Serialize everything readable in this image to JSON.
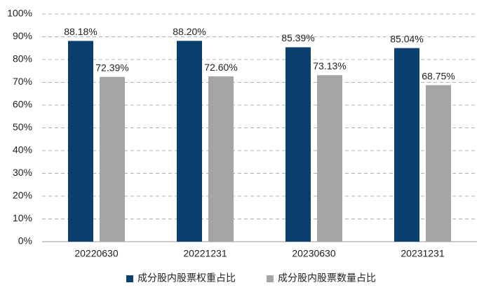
{
  "chart_data": {
    "type": "bar",
    "categories": [
      "20220630",
      "20221231",
      "20230630",
      "20231231"
    ],
    "series": [
      {
        "name": "成分股内股票权重占比",
        "color": "#0b3f70",
        "values": [
          88.18,
          88.2,
          85.39,
          85.04
        ],
        "value_labels": [
          "88.18%",
          "88.20%",
          "85.39%",
          "85.04%"
        ]
      },
      {
        "name": "成分股内股票数量占比",
        "color": "#a5a5a5",
        "values": [
          72.39,
          72.6,
          73.13,
          68.75
        ],
        "value_labels": [
          "72.39%",
          "72.60%",
          "73.13%",
          "68.75%"
        ]
      }
    ],
    "ylim": [
      0,
      100
    ],
    "yticks": [
      {
        "value": 0,
        "label": "0%"
      },
      {
        "value": 10,
        "label": "10%"
      },
      {
        "value": 20,
        "label": "20%"
      },
      {
        "value": 30,
        "label": "30%"
      },
      {
        "value": 40,
        "label": "40%"
      },
      {
        "value": 50,
        "label": "50%"
      },
      {
        "value": 60,
        "label": "60%"
      },
      {
        "value": 70,
        "label": "70%"
      },
      {
        "value": 80,
        "label": "80%"
      },
      {
        "value": 90,
        "label": "90%"
      },
      {
        "value": 100,
        "label": "100%"
      }
    ],
    "grid": true,
    "legend": "bottom"
  }
}
